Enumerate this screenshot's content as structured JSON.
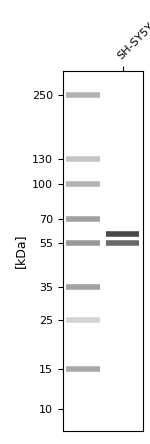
{
  "chart_data": {
    "type": "gel",
    "categories": [
      null,
      "SH-SY5Y"
    ],
    "bands": [
      [
        250,
        130,
        100,
        70,
        55,
        35,
        25,
        15
      ],
      [
        60,
        55
      ]
    ],
    "intensities": [
      [
        0.45,
        0.35,
        0.45,
        0.55,
        0.6,
        0.55,
        0.25,
        0.5
      ],
      [
        0.8,
        0.7
      ]
    ],
    "colors": [
      [
        "#555555",
        "#555555",
        "#555555",
        "#555555",
        "#555555",
        "#555555",
        "#555555",
        "#555555"
      ],
      [
        "#1a1a1a",
        "#2a2a2a"
      ]
    ],
    "y_label": "[kDa]",
    "log": "y",
    "ylim": [
      8,
      320
    ],
    "yticks": [
      250,
      130,
      100,
      70,
      55,
      35,
      25,
      15,
      10
    ],
    "grid": false
  }
}
